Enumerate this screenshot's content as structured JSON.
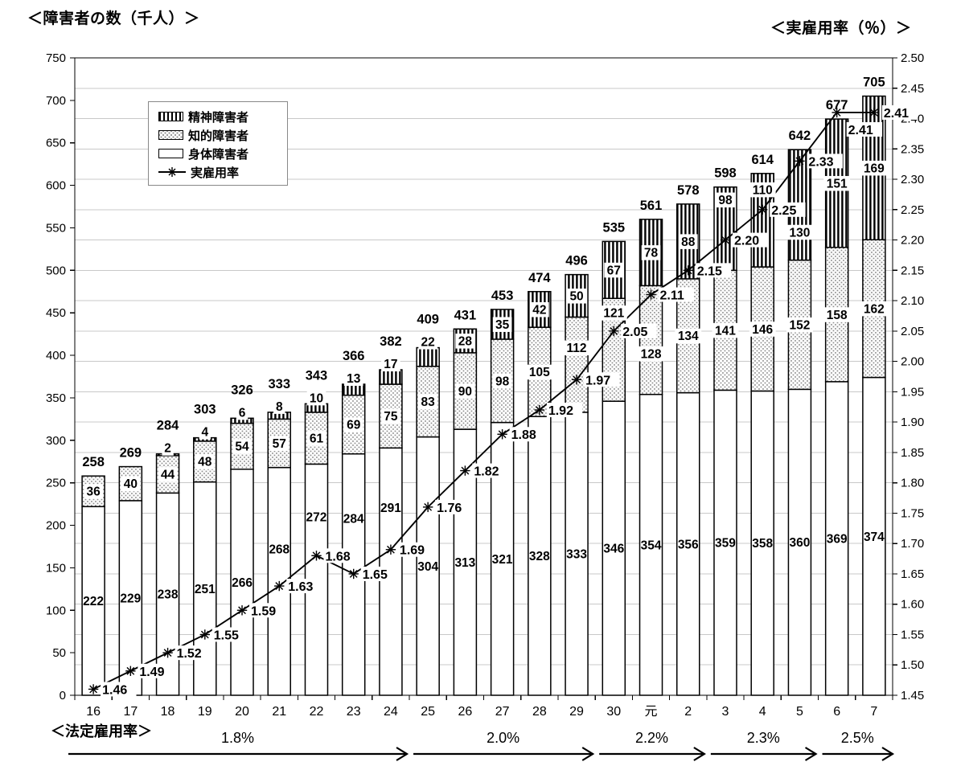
{
  "titles": {
    "left": "＜障害者の数（千人）＞",
    "right": "＜実雇用率（％）＞"
  },
  "chart_data": {
    "type": "bar",
    "subtype": "stacked-bar-with-line-overlay",
    "categories": [
      "16",
      "17",
      "18",
      "19",
      "20",
      "21",
      "22",
      "23",
      "24",
      "25",
      "26",
      "27",
      "28",
      "29",
      "30",
      "元",
      "2",
      "3",
      "4",
      "5",
      "6",
      "7"
    ],
    "series": [
      {
        "name": "身体障害者",
        "pattern": "plain-white",
        "values": [
          222,
          229,
          238,
          251,
          266,
          268,
          272,
          284,
          291,
          304,
          313,
          321,
          328,
          333,
          346,
          354,
          356,
          359,
          358,
          360,
          369,
          374
        ]
      },
      {
        "name": "知的障害者",
        "pattern": "gray-dots",
        "values": [
          36,
          40,
          44,
          48,
          54,
          57,
          61,
          69,
          75,
          83,
          90,
          98,
          105,
          112,
          121,
          128,
          134,
          141,
          146,
          152,
          158,
          162
        ]
      },
      {
        "name": "精神障害者",
        "pattern": "vertical-stripes",
        "values": [
          null,
          null,
          2,
          4,
          6,
          8,
          10,
          13,
          17,
          22,
          28,
          35,
          42,
          50,
          67,
          78,
          88,
          98,
          110,
          130,
          151,
          169
        ]
      }
    ],
    "totals": [
      258,
      269,
      284,
      303,
      326,
      333,
      343,
      366,
      382,
      409,
      431,
      453,
      474,
      496,
      535,
      561,
      578,
      598,
      614,
      642,
      677,
      705
    ],
    "rate_series": {
      "name": "実雇用率",
      "values": [
        1.46,
        1.49,
        1.52,
        1.55,
        1.59,
        1.63,
        1.68,
        1.65,
        1.69,
        1.76,
        1.82,
        1.88,
        1.92,
        1.97,
        2.05,
        2.11,
        2.15,
        2.2,
        2.25,
        2.33,
        2.41,
        2.41
      ],
      "labels": [
        "1.46",
        "1.49",
        "1.52",
        "1.55",
        "1.59",
        "1.63",
        "1.68",
        "1.65",
        "1.69",
        "1.76",
        "1.82",
        "1.88",
        "1.92",
        "1.97",
        "2.05",
        "2.11",
        "2.15",
        "2.20",
        "2.25",
        "2.33",
        "2.41",
        "2.41"
      ]
    },
    "left_axis": {
      "title": "＜障害者の数（千人）＞",
      "min": 0,
      "max": 750,
      "label_step": 50
    },
    "right_axis": {
      "title": "＜実雇用率（％）＞",
      "min": 1.45,
      "max": 2.5,
      "label_step": 0.05
    },
    "grid": "horizontal-light-gray",
    "legend": [
      "精神障害者",
      "知的障害者",
      "身体障害者",
      "実雇用率"
    ],
    "legend_position": "upper-left-inside",
    "legal_rate": {
      "label": "＜法定雇用率＞",
      "segments": [
        {
          "label": "1.8%",
          "from": 0,
          "to": 9
        },
        {
          "label": "2.0%",
          "from": 9,
          "to": 14
        },
        {
          "label": "2.2%",
          "from": 14,
          "to": 17
        },
        {
          "label": "2.3%",
          "from": 17,
          "to": 20
        },
        {
          "label": "2.5%",
          "from": 20,
          "to": 22
        }
      ]
    },
    "label_layout_hints": {
      "mental_inline_min": 28,
      "physical_center_value": {
        "5": 172,
        "6": 210,
        "7": 208,
        "8": 221
      },
      "intellectual_center_value": {
        "13": 409,
        "14": 450,
        "15": 402
      },
      "mental_center_value": {
        "17": 583,
        "18": 595,
        "19": 545
      },
      "rate_label_offsets": {
        "20": {
          "dx": 14,
          "dy": 27
        },
        "21": {
          "dx": 12,
          "dy": 6
        }
      }
    },
    "colors": {
      "bar_border": "#000000",
      "line": "#000000",
      "grid": "#c8c8c8",
      "dots": "#8f8f8f"
    }
  }
}
